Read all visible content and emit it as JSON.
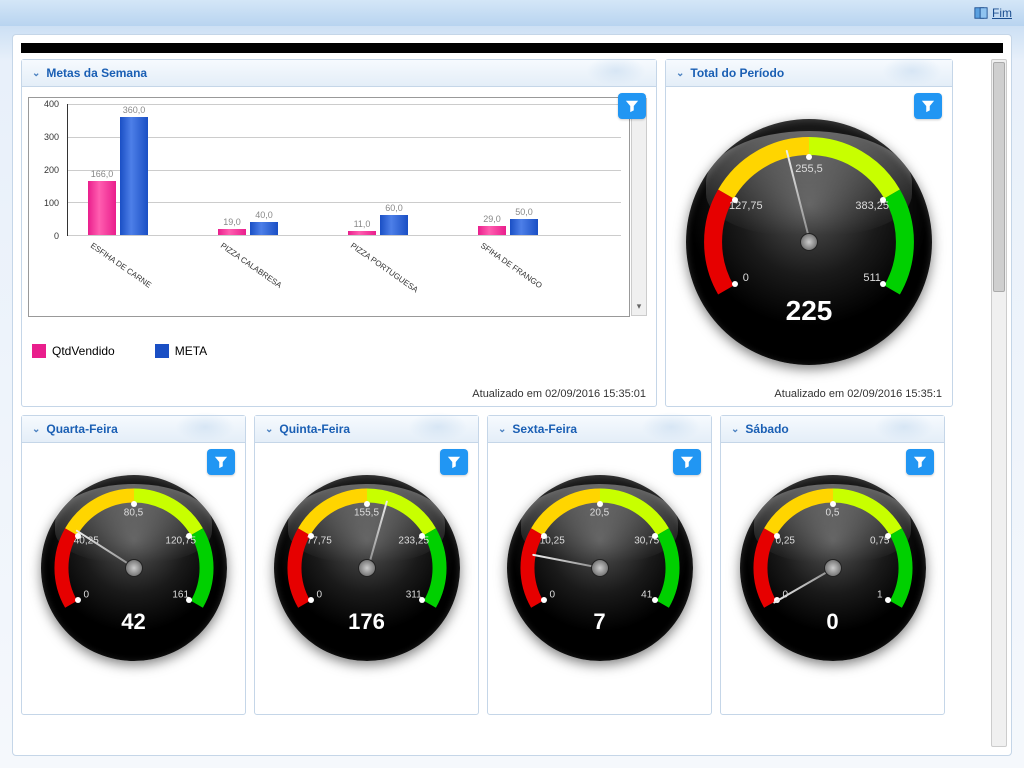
{
  "titlebar": {
    "fim_label": "Fim"
  },
  "updated_prefix": "Atualizado em ",
  "timestamp": "02/09/2016 15:35:01",
  "timestamp_total": "02/09/2016 15:35:1",
  "panels": {
    "metas": {
      "title": "Metas da Semana",
      "legend": {
        "series1": "QtdVendido",
        "series2": "META"
      },
      "chart": {
        "type": "bar",
        "ymax": 400,
        "ytick_step": 100,
        "categories": [
          "ESFIHA DE CARNE",
          "PIZZA CALABRESA",
          "PIZZA PORTUGUESA",
          "SFIHA DE FRANGO"
        ],
        "series": [
          {
            "name": "QtdVendido",
            "color": "#e91e8c",
            "values": [
              166.0,
              19.0,
              11.0,
              29.0
            ]
          },
          {
            "name": "META",
            "color": "#1a4fc4",
            "values": [
              360.0,
              40.0,
              60.0,
              50.0
            ]
          }
        ],
        "value_labels": [
          [
            "166,0",
            "360,0"
          ],
          [
            "19,0",
            "40,0"
          ],
          [
            "11,0",
            "60,0"
          ],
          [
            "29,0",
            "50,0"
          ]
        ]
      }
    },
    "total": {
      "title": "Total do Período",
      "gauge": {
        "min": 0,
        "max": 511,
        "value": 225,
        "ticks": [
          "0",
          "127,75",
          "255,5",
          "383,25",
          "511"
        ],
        "arc_colors": [
          "#e60000",
          "#ffd500",
          "#c8ff00",
          "#00d000"
        ]
      }
    },
    "days": [
      {
        "title": "Quarta-Feira",
        "gauge": {
          "min": 0,
          "max": 161,
          "value": 42,
          "ticks": [
            "0",
            "40,25",
            "80,5",
            "120,75",
            "161"
          ]
        }
      },
      {
        "title": "Quinta-Feira",
        "gauge": {
          "min": 0,
          "max": 311,
          "value": 176,
          "ticks": [
            "0",
            "77,75",
            "155,5",
            "233,25",
            "311"
          ]
        }
      },
      {
        "title": "Sexta-Feira",
        "gauge": {
          "min": 0,
          "max": 41,
          "value": 7,
          "ticks": [
            "0",
            "10,25",
            "20,5",
            "30,75",
            "41"
          ]
        }
      },
      {
        "title": "Sábado",
        "gauge": {
          "min": 0,
          "max": 1,
          "value": 0,
          "ticks": [
            "0",
            "0,25",
            "0,5",
            "0,75",
            "1"
          ]
        }
      }
    ],
    "arc_colors": [
      "#e60000",
      "#ffd500",
      "#c8ff00",
      "#00d000"
    ]
  }
}
